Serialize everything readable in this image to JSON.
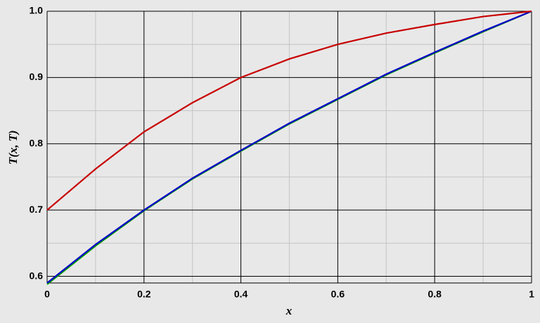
{
  "chart_data": {
    "type": "line",
    "xlabel": "x",
    "ylabel": "T(x, T)",
    "x": [
      0,
      0.1,
      0.2,
      0.3,
      0.4,
      0.5,
      0.6,
      0.7,
      0.8,
      0.9,
      1
    ],
    "series": [
      {
        "color": "#00a000",
        "values": [
          0.588,
          0.646,
          0.699,
          0.747,
          0.789,
          0.83,
          0.867,
          0.904,
          0.937,
          0.969,
          1.0
        ]
      },
      {
        "color": "#0000c8",
        "values": [
          0.59,
          0.648,
          0.7,
          0.748,
          0.79,
          0.831,
          0.868,
          0.905,
          0.938,
          0.97,
          1.0
        ]
      },
      {
        "color": "#c80000",
        "values": [
          0.7,
          0.762,
          0.818,
          0.862,
          0.9,
          0.928,
          0.95,
          0.967,
          0.98,
          0.992,
          1.0
        ]
      }
    ],
    "xlim": [
      0,
      1
    ],
    "ylim": [
      0.59,
      1
    ],
    "xticks": [
      0,
      0.2,
      0.4,
      0.6,
      0.8,
      1
    ],
    "yticks": [
      0.6,
      0.7,
      0.8,
      0.9,
      {
        "value": 1,
        "label": "1.0"
      }
    ],
    "x_minor_grid": [
      0.1,
      0.3,
      0.5,
      0.7,
      0.9
    ],
    "y_minor_grid": [
      0.65,
      0.75,
      0.85,
      0.95
    ],
    "grid": true
  }
}
